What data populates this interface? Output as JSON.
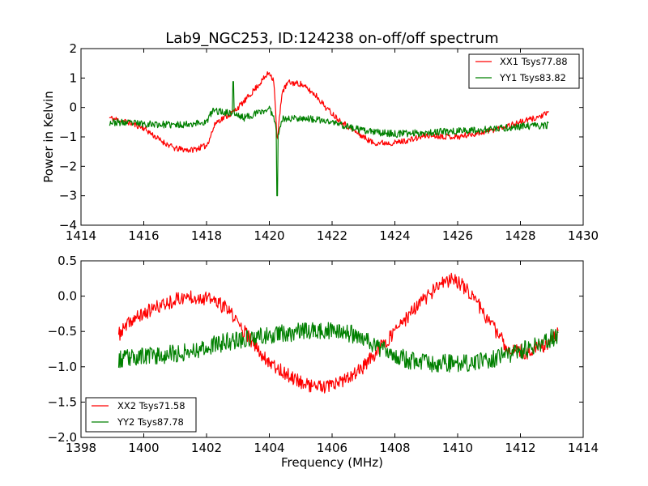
{
  "chart_data": [
    {
      "type": "line",
      "title": "Lab9_NGC253, ID:124238 on-off/off spectrum",
      "xlabel": "",
      "ylabel": "Power in Kelvin",
      "xlim": [
        1414,
        1430
      ],
      "ylim": [
        -4,
        2
      ],
      "xticks": [
        1414,
        1416,
        1418,
        1420,
        1422,
        1424,
        1426,
        1428,
        1430
      ],
      "yticks": [
        -4,
        -3,
        -2,
        -1,
        0,
        1,
        2
      ],
      "grid": false,
      "legend_position": "upper-right",
      "series": [
        {
          "name": "XX1 Tsys77.88",
          "color": "#ff0000",
          "x_range": [
            1414.9,
            1428.9
          ],
          "shape_points": [
            [
              1414.9,
              -0.35
            ],
            [
              1415.5,
              -0.5
            ],
            [
              1416.0,
              -0.7
            ],
            [
              1416.5,
              -1.1
            ],
            [
              1417.0,
              -1.4
            ],
            [
              1417.5,
              -1.45
            ],
            [
              1418.0,
              -1.3
            ],
            [
              1418.3,
              -0.5
            ],
            [
              1418.8,
              -0.2
            ],
            [
              1419.2,
              0.2
            ],
            [
              1419.6,
              0.7
            ],
            [
              1420.0,
              1.2
            ],
            [
              1420.15,
              0.9
            ],
            [
              1420.25,
              -1.2
            ],
            [
              1420.4,
              0.5
            ],
            [
              1420.6,
              0.85
            ],
            [
              1421.0,
              0.8
            ],
            [
              1421.5,
              0.4
            ],
            [
              1421.8,
              0.0
            ],
            [
              1422.2,
              -0.4
            ],
            [
              1422.7,
              -0.8
            ],
            [
              1423.3,
              -1.2
            ],
            [
              1424.0,
              -1.2
            ],
            [
              1424.5,
              -1.1
            ],
            [
              1425.0,
              -0.95
            ],
            [
              1426.0,
              -1.0
            ],
            [
              1427.0,
              -0.8
            ],
            [
              1428.0,
              -0.5
            ],
            [
              1428.5,
              -0.35
            ],
            [
              1428.9,
              -0.2
            ]
          ],
          "spikes": [],
          "noise": 0.1,
          "seed": 11
        },
        {
          "name": "YY1 Tsys83.82",
          "color": "#008000",
          "x_range": [
            1414.9,
            1428.9
          ],
          "shape_points": [
            [
              1414.9,
              -0.5
            ],
            [
              1416.0,
              -0.55
            ],
            [
              1417.0,
              -0.6
            ],
            [
              1418.0,
              -0.5
            ],
            [
              1418.2,
              -0.1
            ],
            [
              1418.8,
              -0.2
            ],
            [
              1419.2,
              -0.35
            ],
            [
              1419.6,
              -0.2
            ],
            [
              1420.0,
              -0.05
            ],
            [
              1420.15,
              -0.3
            ],
            [
              1420.25,
              -1.0
            ],
            [
              1420.4,
              -0.4
            ],
            [
              1421.0,
              -0.35
            ],
            [
              1422.0,
              -0.5
            ],
            [
              1423.0,
              -0.8
            ],
            [
              1424.0,
              -0.9
            ],
            [
              1425.0,
              -0.85
            ],
            [
              1426.0,
              -0.8
            ],
            [
              1427.0,
              -0.75
            ],
            [
              1428.0,
              -0.65
            ],
            [
              1428.9,
              -0.6
            ]
          ],
          "spikes": [
            [
              1418.85,
              0.88
            ],
            [
              1420.25,
              -3.0
            ]
          ],
          "noise": 0.12,
          "seed": 23
        }
      ]
    },
    {
      "type": "line",
      "title": "",
      "xlabel": "Frequency (MHz)",
      "ylabel": "",
      "xlim": [
        1398,
        1414
      ],
      "ylim": [
        -2,
        0.5
      ],
      "xticks": [
        1398,
        1400,
        1402,
        1404,
        1406,
        1408,
        1410,
        1412,
        1414
      ],
      "yticks": [
        -2.0,
        -1.5,
        -1.0,
        -0.5,
        0.0,
        0.5
      ],
      "ytick_labels": [
        "−2.0",
        "−1.5",
        "−1.0",
        "−0.5",
        "0.0",
        "0.5"
      ],
      "grid": false,
      "legend_position": "lower-left",
      "series": [
        {
          "name": "XX2 Tsys71.58",
          "color": "#ff0000",
          "x_range": [
            1399.2,
            1413.2
          ],
          "shape_points": [
            [
              1399.2,
              -0.55
            ],
            [
              1399.6,
              -0.35
            ],
            [
              1400.2,
              -0.2
            ],
            [
              1401.0,
              -0.05
            ],
            [
              1401.5,
              0.0
            ],
            [
              1402.2,
              -0.05
            ],
            [
              1402.7,
              -0.2
            ],
            [
              1403.2,
              -0.5
            ],
            [
              1403.8,
              -0.85
            ],
            [
              1404.5,
              -1.1
            ],
            [
              1405.2,
              -1.25
            ],
            [
              1405.8,
              -1.3
            ],
            [
              1406.4,
              -1.2
            ],
            [
              1407.0,
              -1.0
            ],
            [
              1407.6,
              -0.7
            ],
            [
              1408.2,
              -0.4
            ],
            [
              1408.8,
              -0.1
            ],
            [
              1409.4,
              0.15
            ],
            [
              1409.9,
              0.25
            ],
            [
              1410.4,
              0.05
            ],
            [
              1411.0,
              -0.35
            ],
            [
              1411.6,
              -0.75
            ],
            [
              1412.2,
              -0.8
            ],
            [
              1412.8,
              -0.7
            ],
            [
              1413.2,
              -0.5
            ]
          ],
          "spikes": [],
          "noise": 0.1,
          "seed": 37
        },
        {
          "name": "YY2 Tsys87.78",
          "color": "#008000",
          "x_range": [
            1399.2,
            1413.2
          ],
          "shape_points": [
            [
              1399.2,
              -0.9
            ],
            [
              1400.0,
              -0.85
            ],
            [
              1401.0,
              -0.82
            ],
            [
              1402.0,
              -0.72
            ],
            [
              1402.6,
              -0.65
            ],
            [
              1403.2,
              -0.6
            ],
            [
              1404.0,
              -0.55
            ],
            [
              1405.0,
              -0.5
            ],
            [
              1406.0,
              -0.5
            ],
            [
              1406.8,
              -0.55
            ],
            [
              1407.6,
              -0.75
            ],
            [
              1408.4,
              -0.9
            ],
            [
              1409.2,
              -0.95
            ],
            [
              1410.2,
              -0.95
            ],
            [
              1411.0,
              -0.9
            ],
            [
              1411.8,
              -0.8
            ],
            [
              1412.5,
              -0.7
            ],
            [
              1413.2,
              -0.55
            ]
          ],
          "spikes": [],
          "noise": 0.13,
          "seed": 53
        }
      ]
    }
  ]
}
